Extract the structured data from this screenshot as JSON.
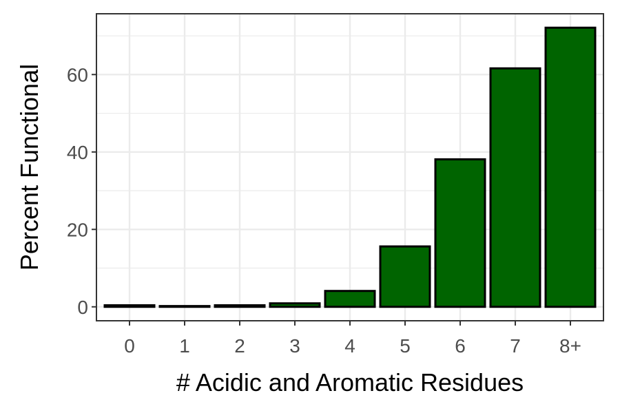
{
  "chart_data": {
    "type": "bar",
    "title": "",
    "xlabel": "# Acidic and Aromatic Residues",
    "ylabel": "Percent Functional",
    "categories": [
      "0",
      "1",
      "2",
      "3",
      "4",
      "5",
      "6",
      "7",
      "8+"
    ],
    "values": [
      0.4,
      0.2,
      0.4,
      0.9,
      4.1,
      15.6,
      38.1,
      61.6,
      72.1
    ],
    "ylim": [
      -3.6,
      75.7
    ],
    "yticks": [
      0,
      20,
      40,
      60
    ],
    "grid": true,
    "legend": "none",
    "colors": {
      "bar_fill": "#006400",
      "bar_stroke": "#000000",
      "grid": "#ebebeb",
      "panel_border": "#333333",
      "tick_label": "#4d4d4d",
      "axis_title": "#000000"
    }
  }
}
